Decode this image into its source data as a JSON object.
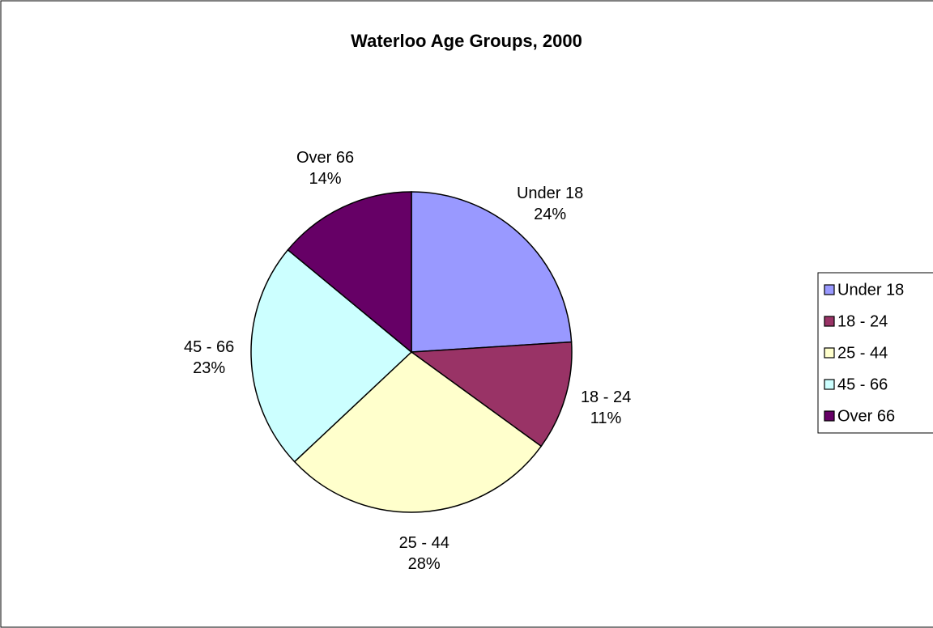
{
  "chart_data": {
    "type": "pie",
    "title": "Waterloo Age Groups, 2000",
    "categories": [
      "Under 18",
      "18 - 24",
      "25 - 44",
      "45 - 66",
      "Over 66"
    ],
    "values": [
      24,
      11,
      28,
      23,
      14
    ],
    "value_labels": [
      "24%",
      "11%",
      "28%",
      "23%",
      "14%"
    ],
    "colors": [
      "#9999ff",
      "#993366",
      "#ffffcc",
      "#ccffff",
      "#660066"
    ],
    "legend": "right"
  }
}
